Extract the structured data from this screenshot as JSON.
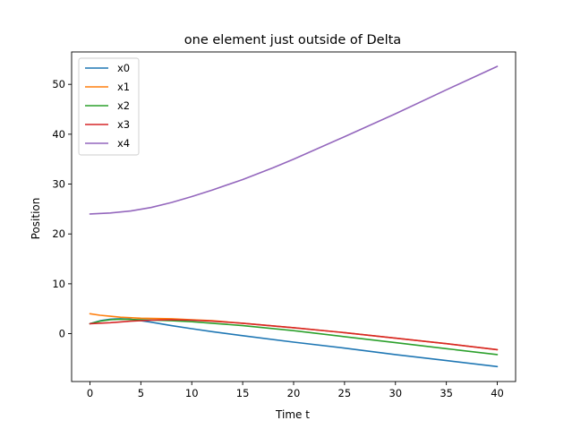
{
  "chart_data": {
    "type": "line",
    "title": "one element just outside of Delta",
    "xlabel": "Time t",
    "ylabel": "Position",
    "xlim": [
      -1.8,
      41.8
    ],
    "ylim": [
      -9.6,
      56.5
    ],
    "xticks": [
      0,
      5,
      10,
      15,
      20,
      25,
      30,
      35,
      40
    ],
    "yticks": [
      0,
      10,
      20,
      30,
      40,
      50
    ],
    "grid": false,
    "legend_position": "upper-left",
    "series": [
      {
        "name": "x0",
        "color": "#1f77b4",
        "x": [
          0,
          1,
          2,
          3,
          4,
          5,
          6,
          8,
          10,
          12,
          15,
          20,
          25,
          30,
          35,
          40
        ],
        "y": [
          2.0,
          2.6,
          2.9,
          3.0,
          2.9,
          2.6,
          2.3,
          1.6,
          1.0,
          0.4,
          -0.4,
          -1.7,
          -2.9,
          -4.2,
          -5.4,
          -6.6
        ]
      },
      {
        "name": "x1",
        "color": "#ff7f0e",
        "x": [
          0,
          1,
          2,
          3,
          5,
          8,
          10,
          12,
          15,
          20,
          25,
          30,
          35,
          40
        ],
        "y": [
          4.0,
          3.7,
          3.5,
          3.3,
          3.1,
          3.0,
          2.8,
          2.6,
          2.1,
          1.2,
          0.2,
          -0.9,
          -2.0,
          -3.2
        ]
      },
      {
        "name": "x2",
        "color": "#2ca02c",
        "x": [
          0,
          1,
          2,
          3,
          5,
          8,
          10,
          12,
          15,
          20,
          25,
          30,
          35,
          40
        ],
        "y": [
          2.0,
          2.5,
          2.8,
          2.9,
          2.8,
          2.6,
          2.4,
          2.1,
          1.6,
          0.6,
          -0.6,
          -1.8,
          -3.0,
          -4.2
        ]
      },
      {
        "name": "x3",
        "color": "#d62728",
        "x": [
          0,
          2,
          4,
          6,
          8,
          10,
          12,
          15,
          20,
          25,
          30,
          35,
          40
        ],
        "y": [
          2.0,
          2.2,
          2.5,
          2.7,
          2.8,
          2.7,
          2.5,
          2.1,
          1.2,
          0.2,
          -0.9,
          -2.0,
          -3.2
        ]
      },
      {
        "name": "x4",
        "color": "#9467bd",
        "x": [
          0,
          2,
          4,
          6,
          8,
          10,
          12,
          15,
          18,
          20,
          25,
          30,
          35,
          40
        ],
        "y": [
          24.0,
          24.2,
          24.6,
          25.3,
          26.3,
          27.5,
          28.8,
          30.9,
          33.3,
          35.0,
          39.5,
          44.1,
          48.9,
          53.6
        ]
      }
    ]
  }
}
